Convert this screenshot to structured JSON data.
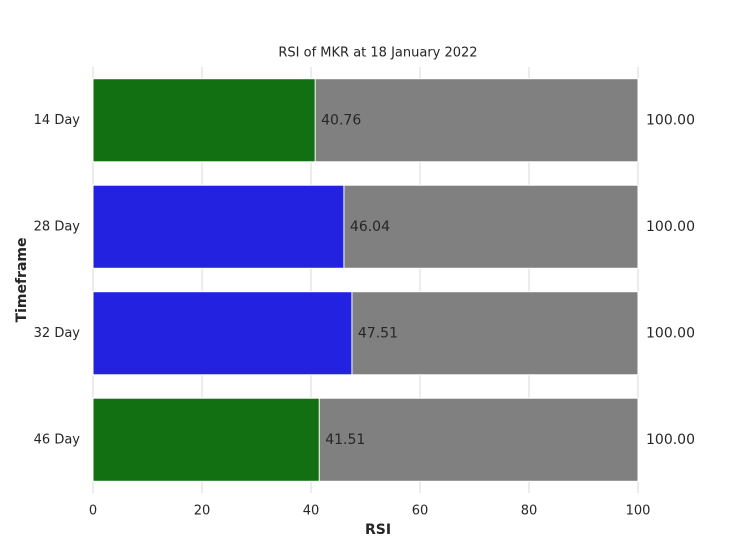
{
  "chart_data": {
    "type": "bar",
    "orientation": "horizontal",
    "title": "RSI of MKR at 18 January 2022",
    "x_label": "RSI",
    "y_label": "Timeframe",
    "categories": [
      "14 Day",
      "28 Day",
      "32 Day",
      "46 Day"
    ],
    "series": [
      {
        "color": "#808080",
        "values": [
          100,
          100,
          100,
          100
        ],
        "value_labels": [
          "100.00",
          "100.00",
          "100.00",
          "100.00"
        ]
      },
      {
        "colors": [
          "#127012",
          "#2222e0",
          "#2222e0",
          "#127012"
        ],
        "values": [
          40.76,
          46.04,
          47.51,
          41.51
        ]
      }
    ],
    "xlim": [
      0,
      100
    ],
    "xticks": [
      0,
      20,
      40,
      60,
      80,
      100
    ],
    "grid": true
  }
}
